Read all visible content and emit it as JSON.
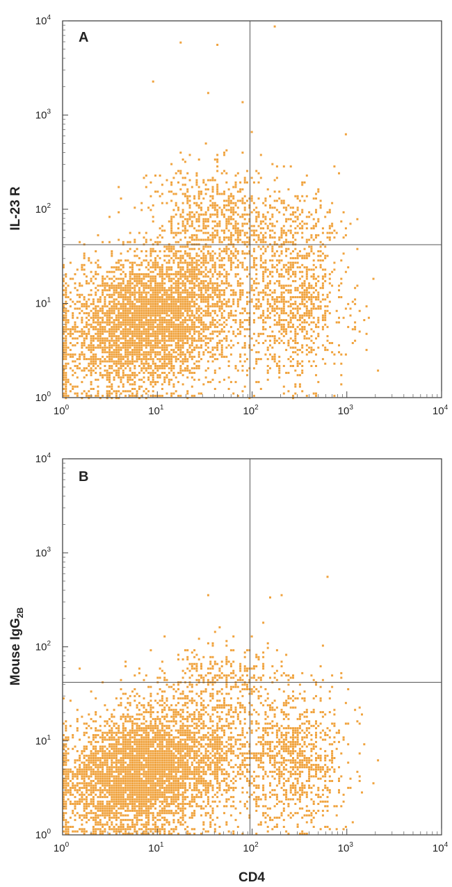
{
  "chart_data": [
    {
      "type": "scatter",
      "panel_label": "A",
      "xlabel": "",
      "ylabel": "IL-23 R",
      "xscale": "log",
      "yscale": "log",
      "xlim": [
        1,
        10000
      ],
      "ylim": [
        1,
        10000
      ],
      "x_ticks": [
        "10",
        "10",
        "10",
        "10",
        "10"
      ],
      "x_tick_exps": [
        "0",
        "1",
        "2",
        "3",
        "4"
      ],
      "y_ticks": [
        "10",
        "10",
        "10",
        "10",
        "10"
      ],
      "y_tick_exps": [
        "0",
        "1",
        "2",
        "3",
        "4"
      ],
      "quadrant_x": 95,
      "quadrant_y": 42,
      "point_color": "#f0a33e",
      "outliers": [
        [
          170,
          8800
        ],
        [
          18,
          5900
        ],
        [
          42,
          5400
        ],
        [
          9,
          2300
        ],
        [
          34,
          1750
        ],
        [
          80,
          1400
        ],
        [
          19,
          330
        ],
        [
          14,
          300
        ],
        [
          40,
          330
        ],
        [
          220,
          280
        ],
        [
          110,
          260
        ]
      ],
      "clusters": [
        {
          "cx": 8,
          "cy": 7,
          "sx": 0.32,
          "sy": 0.32,
          "n": 2600
        },
        {
          "cx": 3,
          "cy": 4,
          "sx": 0.38,
          "sy": 0.35,
          "n": 1000
        },
        {
          "cx": 30,
          "cy": 12,
          "sx": 0.36,
          "sy": 0.42,
          "n": 1100
        },
        {
          "cx": 40,
          "cy": 80,
          "sx": 0.33,
          "sy": 0.28,
          "n": 500
        },
        {
          "cx": 280,
          "cy": 10,
          "sx": 0.28,
          "sy": 0.42,
          "n": 900
        },
        {
          "cx": 200,
          "cy": 70,
          "sx": 0.3,
          "sy": 0.25,
          "n": 250
        }
      ]
    },
    {
      "type": "scatter",
      "panel_label": "B",
      "xlabel": "CD4",
      "ylabel": "Mouse IgG",
      "ylabel_sub": "2B",
      "xscale": "log",
      "yscale": "log",
      "xlim": [
        1,
        10000
      ],
      "ylim": [
        1,
        10000
      ],
      "x_ticks": [
        "10",
        "10",
        "10",
        "10",
        "10"
      ],
      "x_tick_exps": [
        "0",
        "1",
        "2",
        "3",
        "4"
      ],
      "y_ticks": [
        "10",
        "10",
        "10",
        "10",
        "10"
      ],
      "y_tick_exps": [
        "0",
        "1",
        "2",
        "3",
        "4"
      ],
      "quadrant_x": 95,
      "quadrant_y": 42,
      "point_color": "#f0a33e",
      "outliers": [
        [
          620,
          560
        ],
        [
          35,
          350
        ],
        [
          200,
          350
        ],
        [
          12,
          130
        ],
        [
          45,
          160
        ],
        [
          100,
          130
        ],
        [
          150,
          110
        ],
        [
          570,
          100
        ]
      ],
      "clusters": [
        {
          "cx": 7,
          "cy": 5,
          "sx": 0.33,
          "sy": 0.3,
          "n": 3000
        },
        {
          "cx": 3,
          "cy": 3,
          "sx": 0.38,
          "sy": 0.3,
          "n": 1000
        },
        {
          "cx": 30,
          "cy": 8,
          "sx": 0.38,
          "sy": 0.38,
          "n": 1200
        },
        {
          "cx": 280,
          "cy": 6,
          "sx": 0.28,
          "sy": 0.36,
          "n": 900
        },
        {
          "cx": 50,
          "cy": 45,
          "sx": 0.35,
          "sy": 0.18,
          "n": 250
        }
      ]
    }
  ]
}
